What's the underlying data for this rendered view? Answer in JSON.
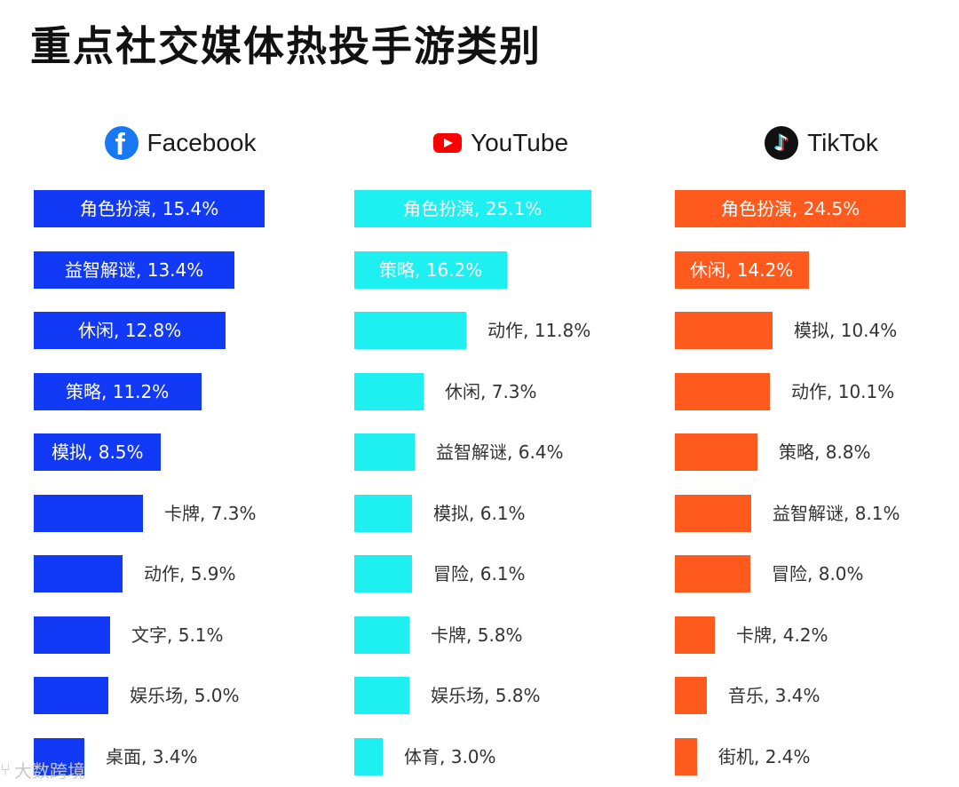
{
  "title": "重点社交媒体热投手游类别",
  "watermark": {
    "icon": "dashu-logo-icon",
    "text": "大数跨境"
  },
  "colors": {
    "facebook": "#1239f5",
    "youtube": "#1ef0f2",
    "tiktok": "#ff5a1e"
  },
  "chart_data": [
    {
      "type": "bar",
      "platform": "Facebook",
      "icon": "facebook-icon",
      "categories": [
        "角色扮演",
        "益智解谜",
        "休闲",
        "策略",
        "模拟",
        "卡牌",
        "动作",
        "文字",
        "娱乐场",
        "桌面"
      ],
      "values": [
        15.4,
        13.4,
        12.8,
        11.2,
        8.5,
        7.3,
        5.9,
        5.1,
        5.0,
        3.4
      ],
      "labels": [
        "角色扮演, 15.4%",
        "益智解谜, 13.4%",
        "休闲, 12.8%",
        "策略, 11.2%",
        "模拟, 8.5%",
        "卡牌, 7.3%",
        "动作, 5.9%",
        "文字, 5.1%",
        "娱乐场, 5.0%",
        "桌面, 3.4%"
      ],
      "unit": "%"
    },
    {
      "type": "bar",
      "platform": "YouTube",
      "icon": "youtube-icon",
      "categories": [
        "角色扮演",
        "策略",
        "动作",
        "休闲",
        "益智解谜",
        "模拟",
        "冒险",
        "卡牌",
        "娱乐场",
        "体育"
      ],
      "values": [
        25.1,
        16.2,
        11.8,
        7.3,
        6.4,
        6.1,
        6.1,
        5.8,
        5.8,
        3.0
      ],
      "labels": [
        "角色扮演, 25.1%",
        "策略, 16.2%",
        "动作, 11.8%",
        "休闲, 7.3%",
        "益智解谜, 6.4%",
        "模拟, 6.1%",
        "冒险, 6.1%",
        "卡牌, 5.8%",
        "娱乐场, 5.8%",
        "体育, 3.0%"
      ],
      "unit": "%"
    },
    {
      "type": "bar",
      "platform": "TikTok",
      "icon": "tiktok-icon",
      "categories": [
        "角色扮演",
        "休闲",
        "模拟",
        "动作",
        "策略",
        "益智解谜",
        "冒险",
        "卡牌",
        "音乐",
        "街机"
      ],
      "values": [
        24.5,
        14.2,
        10.4,
        10.1,
        8.8,
        8.1,
        8.0,
        4.2,
        3.4,
        2.4
      ],
      "labels": [
        "角色扮演, 24.5%",
        "休闲, 14.2%",
        "模拟, 10.4%",
        "动作, 10.1%",
        "策略, 8.8%",
        "益智解谜, 8.1%",
        "冒险, 8.0%",
        "卡牌, 4.2%",
        "音乐, 3.4%",
        "街机, 2.4%"
      ],
      "unit": "%"
    }
  ]
}
